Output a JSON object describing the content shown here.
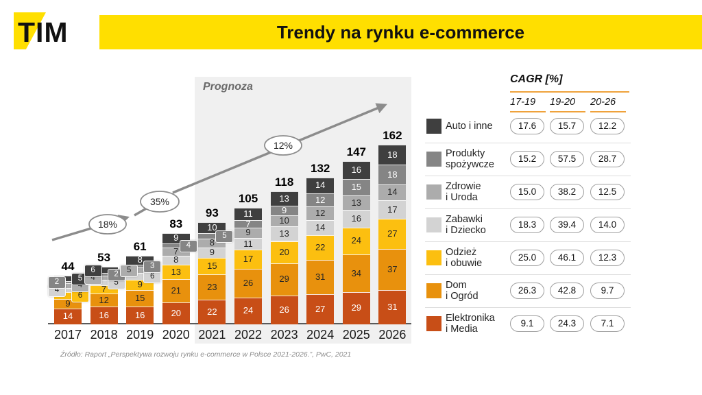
{
  "logo": {
    "text": "TIM"
  },
  "header": {
    "title": "Trendy na rynku e-commerce",
    "bar_color": "#FFDF00"
  },
  "chart_data": {
    "type": "bar",
    "subtype": "stacked",
    "title": "Trendy na rynku e-commerce",
    "forecast_label": "Prognoza",
    "forecast_years": [
      "2021",
      "2022",
      "2023",
      "2024",
      "2025",
      "2026"
    ],
    "growth_annotations": [
      "18%",
      "35%",
      "12%"
    ],
    "categories": [
      "2017",
      "2018",
      "2019",
      "2020",
      "2021",
      "2022",
      "2023",
      "2024",
      "2025",
      "2026"
    ],
    "totals": [
      44,
      53,
      61,
      83,
      93,
      105,
      118,
      132,
      147,
      162
    ],
    "legend_position": "right",
    "grid": false,
    "series": [
      {
        "name": "Elektronika i Media",
        "legend_lines": [
          "Elektronika",
          "i Media"
        ],
        "color": "#C84E17",
        "label_color": "#FFFFFF",
        "values": [
          14,
          16,
          16,
          20,
          22,
          24,
          26,
          27,
          29,
          31
        ],
        "cagr": [
          "9.1",
          "24.3",
          "7.1"
        ]
      },
      {
        "name": "Dom i Ogród",
        "legend_lines": [
          "Dom",
          "i Ogród"
        ],
        "color": "#E8910D",
        "label_color": "#262626",
        "values": [
          9,
          12,
          15,
          21,
          23,
          26,
          29,
          31,
          34,
          37
        ],
        "cagr": [
          "26.3",
          "42.8",
          "9.7"
        ]
      },
      {
        "name": "Odzież i obuwie",
        "legend_lines": [
          "Odzież",
          "i obuwie"
        ],
        "color": "#FCBF10",
        "label_color": "#262626",
        "values": [
          6,
          7,
          9,
          13,
          15,
          17,
          20,
          22,
          24,
          27
        ],
        "cagr": [
          "25.0",
          "46.1",
          "12.3"
        ]
      },
      {
        "name": "Zabawki i Dziecko",
        "legend_lines": [
          "Zabawki",
          "i Dziecko"
        ],
        "color": "#D3D3D3",
        "label_color": "#262626",
        "values": [
          4,
          5,
          6,
          8,
          9,
          11,
          13,
          14,
          16,
          17
        ],
        "cagr": [
          "18.3",
          "39.4",
          "14.0"
        ]
      },
      {
        "name": "Zdrowie i Uroda",
        "legend_lines": [
          "Zdrowie",
          "i Uroda"
        ],
        "color": "#ACACAC",
        "label_color": "#262626",
        "values": [
          4,
          4,
          5,
          7,
          8,
          9,
          10,
          12,
          13,
          14
        ],
        "cagr": [
          "15.0",
          "38.2",
          "12.5"
        ]
      },
      {
        "name": "Produkty spożywcze",
        "legend_lines": [
          "Produkty",
          "spożywcze"
        ],
        "color": "#858585",
        "label_color": "#FFFFFF",
        "values": [
          2,
          2,
          3,
          4,
          5,
          7,
          9,
          12,
          15,
          18
        ],
        "cagr": [
          "15.2",
          "57.5",
          "28.7"
        ]
      },
      {
        "name": "Auto i inne",
        "legend_lines": [
          "Auto i inne"
        ],
        "color": "#3F3F3F",
        "label_color": "#FFFFFF",
        "values": [
          5,
          6,
          8,
          9,
          10,
          11,
          13,
          14,
          16,
          18
        ],
        "cagr": [
          "17.6",
          "15.7",
          "12.2"
        ]
      }
    ]
  },
  "legend_table": {
    "header": "CAGR [%]",
    "columns": [
      "17-19",
      "19-20",
      "20-26"
    ]
  },
  "footer": {
    "source": "Źródło: Raport „Perspektywa rozwoju rynku e-commerce w Polsce 2021-2026.”, PwC, 2021"
  }
}
